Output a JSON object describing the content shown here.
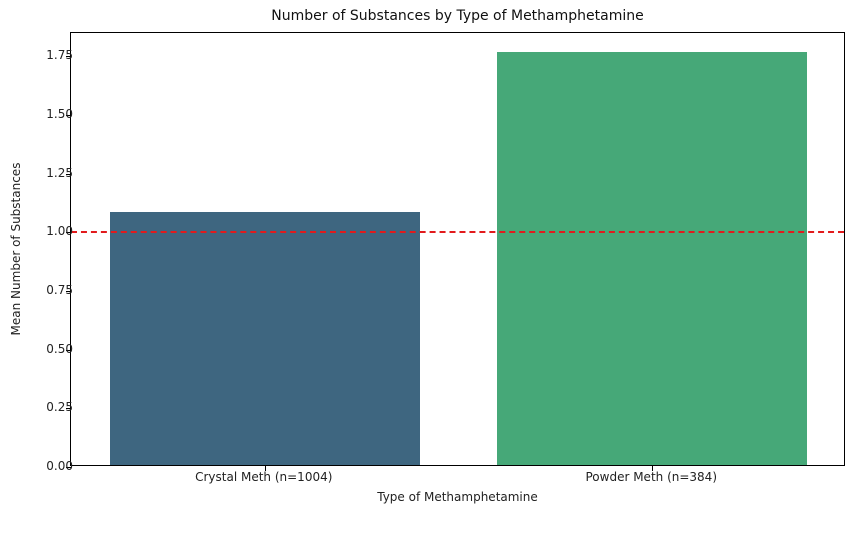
{
  "chart_data": {
    "type": "bar",
    "title": "Number of Substances by Type of Methamphetamine",
    "xlabel": "Type of Methamphetamine",
    "ylabel": "Mean Number of Substances",
    "categories": [
      "Crystal Meth (n=1004)",
      "Powder Meth (n=384)"
    ],
    "values": [
      1.08,
      1.76
    ],
    "colors": [
      "#3e6680",
      "#46a878"
    ],
    "ylim": [
      0,
      1.85
    ],
    "yticks": [
      "0.00",
      "0.25",
      "0.50",
      "0.75",
      "1.00",
      "1.25",
      "1.50",
      "1.75"
    ],
    "reference_line": {
      "y": 1.0,
      "style": "dashed",
      "color": "#e31a1c"
    },
    "grid": false,
    "legend": null
  }
}
